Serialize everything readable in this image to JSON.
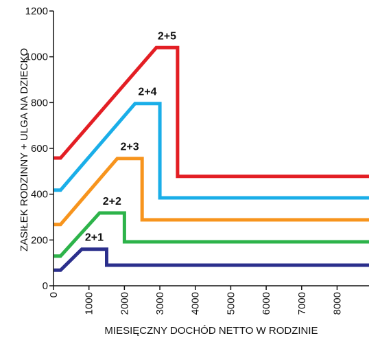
{
  "chart_data": {
    "type": "line",
    "title": "",
    "xlabel": "MIESIĘCZNY DOCHÓD NETTO W RODZINIE",
    "ylabel": "ZASIŁEK RODZINNY + ULGA NA DZIECKO",
    "xlim": [
      0,
      8900
    ],
    "ylim": [
      0,
      1200
    ],
    "x_ticks": [
      0,
      1000,
      2000,
      3000,
      4000,
      5000,
      6000,
      7000,
      8000
    ],
    "y_ticks": [
      0,
      200,
      400,
      600,
      800,
      1000,
      1200
    ],
    "grid": false,
    "series": [
      {
        "name": "2+1",
        "color": "#2b2f8c",
        "x": [
          0,
          200,
          800,
          1500,
          1500,
          8900
        ],
        "y": [
          68,
          68,
          160,
          160,
          90,
          90
        ]
      },
      {
        "name": "2+2",
        "color": "#2db34a",
        "x": [
          0,
          200,
          1300,
          2000,
          2000,
          8900
        ],
        "y": [
          130,
          130,
          318,
          318,
          192,
          192
        ]
      },
      {
        "name": "2+3",
        "color": "#f7941d",
        "x": [
          0,
          200,
          1800,
          2500,
          2500,
          8900
        ],
        "y": [
          268,
          268,
          556,
          556,
          288,
          288
        ]
      },
      {
        "name": "2+4",
        "color": "#1aaee8",
        "x": [
          0,
          200,
          2300,
          3000,
          3000,
          8900
        ],
        "y": [
          418,
          418,
          796,
          796,
          384,
          384
        ]
      },
      {
        "name": "2+5",
        "color": "#e31e24",
        "x": [
          0,
          200,
          2900,
          3500,
          3500,
          8900
        ],
        "y": [
          558,
          558,
          1040,
          1040,
          478,
          478
        ]
      }
    ]
  }
}
